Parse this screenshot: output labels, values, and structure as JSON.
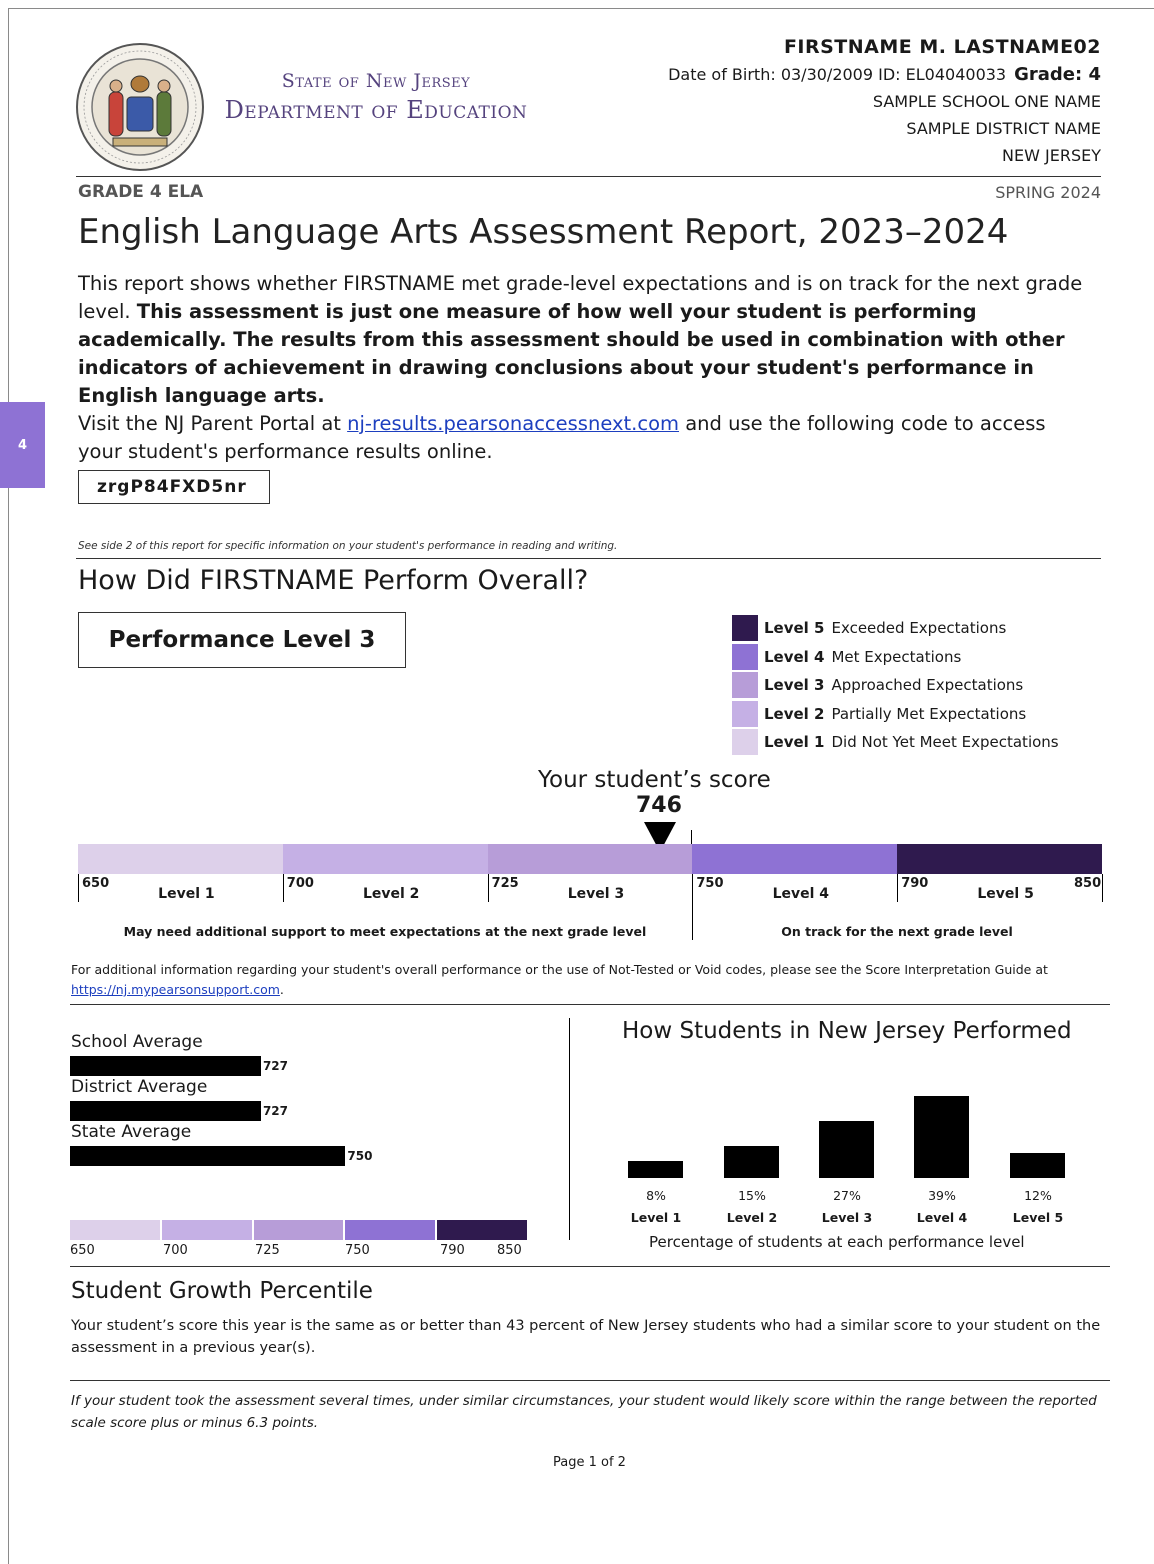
{
  "side_tab": {
    "label": "4"
  },
  "header": {
    "agency_line1": "State of New Jersey",
    "agency_line2": "Department of Education",
    "student_name": "FIRSTNAME M. LASTNAME02",
    "dob_id": "Date of Birth: 03/30/2009  ID: EL04040033",
    "grade": "Grade: 4",
    "school": "SAMPLE SCHOOL ONE NAME",
    "district": "SAMPLE DISTRICT NAME",
    "state": "NEW JERSEY",
    "grade_subject": "GRADE 4 ELA",
    "season": "SPRING 2024"
  },
  "report_title": "English Language Arts Assessment Report, 2023–2024",
  "intro": {
    "plain": "This report shows whether FIRSTNAME met grade-level expectations and is on track for the next grade level. ",
    "bold": "This assessment is just one measure of how well your student is performing academically. The results from this assessment should be used in combination with other indicators of achievement in drawing conclusions about your student's performance in English language arts."
  },
  "portal": {
    "before": "Visit the NJ Parent Portal at ",
    "link": "nj-results.pearsonaccessnext.com",
    "after": " and use the following code to access your student's performance results online.",
    "code": "zrgP84FXD5nr"
  },
  "side2_note": "See side 2 of this report for specific information on your student's performance in reading and writing.",
  "overall": {
    "title": "How Did FIRSTNAME Perform Overall?",
    "performance_level": "Performance Level 3",
    "legend": [
      {
        "level": "Level 5",
        "desc": "Exceeded Expectations",
        "color": "#2f1a4e"
      },
      {
        "level": "Level 4",
        "desc": "Met Expectations",
        "color": "#8e72d4"
      },
      {
        "level": "Level 3",
        "desc": "Approached Expectations",
        "color": "#b79dd8"
      },
      {
        "level": "Level 2",
        "desc": "Partially Met Expectations",
        "color": "#c5b0e5"
      },
      {
        "level": "Level 1",
        "desc": "Did Not Yet Meet Expectations",
        "color": "#ddd0ea"
      }
    ],
    "score_caption": "Your student’s score",
    "score": 746,
    "scale": {
      "min": 650,
      "max": 850,
      "segments": [
        {
          "label": "Level 1",
          "from": 650,
          "to": 700,
          "color": "#ddd0ea"
        },
        {
          "label": "Level 2",
          "from": 700,
          "to": 725,
          "color": "#c5b0e5"
        },
        {
          "label": "Level 3",
          "from": 725,
          "to": 750,
          "color": "#b79dd8"
        },
        {
          "label": "Level 4",
          "from": 750,
          "to": 790,
          "color": "#8e72d4"
        },
        {
          "label": "Level 5",
          "from": 790,
          "to": 850,
          "color": "#2f1a4e"
        }
      ],
      "tick_labels": [
        "650",
        "700",
        "725",
        "750",
        "790",
        "850"
      ],
      "below_note": "May need additional support to meet expectations at the next grade level",
      "above_note": "On track for the next grade level"
    }
  },
  "additional_info": {
    "text": "For additional information regarding your student's overall performance or the use of Not-Tested or Void codes, please see the Score Interpretation Guide at ",
    "link": "https://nj.mypearsonsupport.com",
    "end": "."
  },
  "averages": [
    {
      "label": "School Average",
      "value": 727
    },
    {
      "label": "District Average",
      "value": 727
    },
    {
      "label": "State Average",
      "value": 750
    }
  ],
  "mini_scale_labels": [
    "650",
    "700",
    "725",
    "750",
    "790",
    "850"
  ],
  "chart_data": {
    "type": "bar",
    "title": "How Students in New Jersey Performed",
    "categories": [
      "Level 1",
      "Level 2",
      "Level 3",
      "Level 4",
      "Level 5"
    ],
    "values": [
      8,
      15,
      27,
      39,
      12
    ],
    "value_labels": [
      "8%",
      "15%",
      "27%",
      "39%",
      "12%"
    ],
    "xlabel": "Percentage of students at each performance level",
    "ylabel": "",
    "ylim": [
      0,
      39
    ]
  },
  "sgp": {
    "title": "Student Growth Percentile",
    "text": "Your student’s score this year is the same as or better than 43 percent of New Jersey students who had a similar score to your student on the assessment in a previous year(s)."
  },
  "range_note": "If your student took the assessment several times, under similar circumstances, your student would likely score within the range between the reported scale score plus or minus 6.3 points.",
  "page_number": "Page 1 of 2"
}
